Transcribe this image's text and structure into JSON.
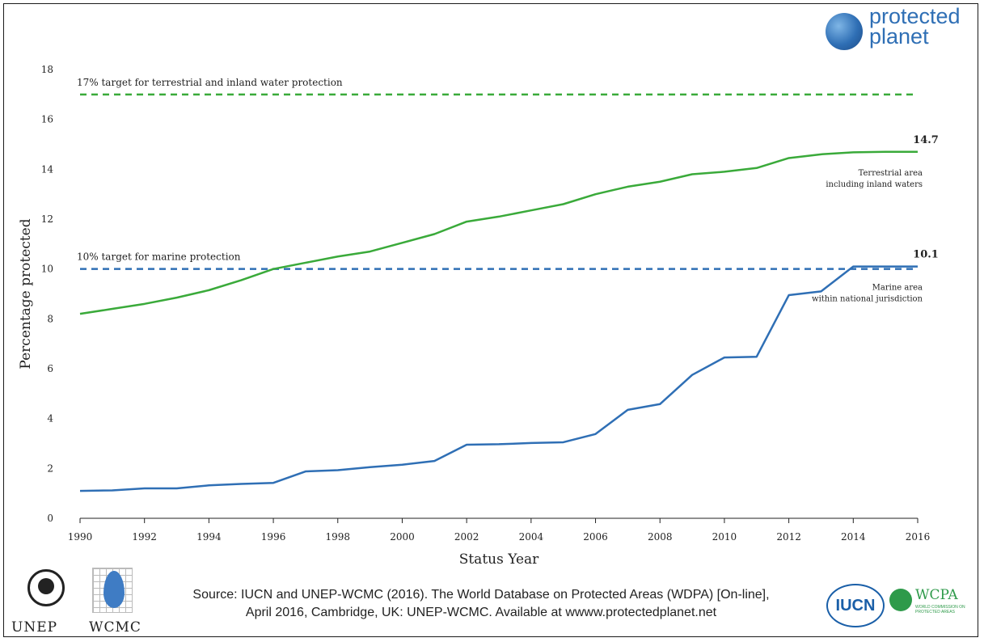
{
  "logos": {
    "protected_planet": {
      "line1": "protected",
      "line2": "planet",
      "icon": "globe-icon"
    },
    "unep": {
      "label": "UNEP",
      "icon": "unep-emblem-icon"
    },
    "wcmc": {
      "label": "WCMC",
      "icon": "wcmc-grid-icon"
    },
    "iucn": {
      "label": "IUCN"
    },
    "wcpa": {
      "label": "WCPA",
      "sub": "WORLD COMMISSION ON PROTECTED AREAS"
    }
  },
  "source": {
    "line1": "Source: IUCN and UNEP-WCMC (2016). The World Database on Protected Areas (WDPA) [On-line],",
    "line2": "April 2016, Cambridge, UK: UNEP-WCMC. Available at wwww.protectedplanet.net"
  },
  "chart_data": {
    "type": "line",
    "title": "",
    "xlabel": "Status Year",
    "ylabel": "Percentage protected",
    "xlim": [
      1990,
      2016
    ],
    "ylim": [
      0,
      18
    ],
    "xticks": [
      1990,
      1992,
      1994,
      1996,
      1998,
      2000,
      2002,
      2004,
      2006,
      2008,
      2010,
      2012,
      2014,
      2016
    ],
    "xtick_labels": [
      "1990",
      "1992",
      "1994",
      "1996",
      "1998",
      "2000",
      "2002",
      "2004",
      "2006",
      "2008",
      "2010",
      "2012",
      "2014",
      "2016"
    ],
    "yticks": [
      0,
      2,
      4,
      6,
      8,
      10,
      12,
      14,
      16,
      18
    ],
    "ytick_labels": [
      "0",
      "2",
      "4",
      "6",
      "8",
      "10",
      "12",
      "14",
      "16",
      "18"
    ],
    "grid": false,
    "x": [
      1990,
      1991,
      1992,
      1993,
      1994,
      1995,
      1996,
      1997,
      1998,
      1999,
      2000,
      2001,
      2002,
      2003,
      2004,
      2005,
      2006,
      2007,
      2008,
      2009,
      2010,
      2011,
      2012,
      2013,
      2014,
      2015,
      2016
    ],
    "series": [
      {
        "key": "terrestrial",
        "color": "#3aaa3a",
        "values": [
          8.2,
          8.4,
          8.6,
          8.85,
          9.15,
          9.55,
          10.0,
          10.25,
          10.5,
          10.7,
          11.05,
          11.4,
          11.9,
          12.1,
          12.35,
          12.6,
          13.0,
          13.3,
          13.5,
          13.8,
          13.9,
          14.05,
          14.45,
          14.6,
          14.68,
          14.7,
          14.7
        ]
      },
      {
        "key": "marine",
        "color": "#2f6fb5",
        "values": [
          1.1,
          1.12,
          1.2,
          1.2,
          1.32,
          1.38,
          1.42,
          1.88,
          1.93,
          2.05,
          2.15,
          2.3,
          2.95,
          2.97,
          3.02,
          3.05,
          3.38,
          4.35,
          4.58,
          5.75,
          6.45,
          6.48,
          8.95,
          9.1,
          10.1,
          10.1,
          10.1
        ]
      }
    ],
    "targets": [
      {
        "key": "terrestrial_target",
        "value": 17,
        "color": "#3aaa3a",
        "label": "17% target for terrestrial and inland water protection"
      },
      {
        "key": "marine_target",
        "value": 10,
        "color": "#2f6fb5",
        "label": "10% target for marine protection"
      }
    ],
    "end_labels": [
      {
        "series": "terrestrial",
        "value_text": "14.7",
        "desc_line1": "Terrestrial area",
        "desc_line2": "including inland waters"
      },
      {
        "series": "marine",
        "value_text": "10.1",
        "desc_line1": "Marine area",
        "desc_line2": "within national jurisdiction"
      }
    ]
  }
}
